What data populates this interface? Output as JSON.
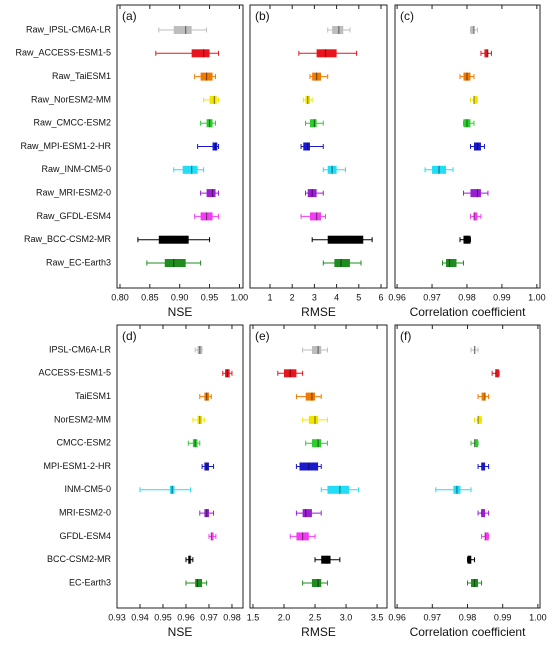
{
  "chart_data": [
    {
      "type": "box",
      "panel_label": "(a)",
      "xlabel": "NSE",
      "categories": [
        "Raw_IPSL-CM6A-LR",
        "Raw_ACCESS-ESM1-5",
        "Raw_TaiESM1",
        "Raw_NorESM2-MM",
        "Raw_CMCC-ESM2",
        "Raw_MPI-ESM1-2-HR",
        "Raw_INM-CM5-0",
        "Raw_MRI-ESM2-0",
        "Raw_GFDL-ESM4",
        "Raw_BCC-CSM2-MR",
        "Raw_EC-Earth3"
      ],
      "colors": [
        "#bdbdbd",
        "#e8141e",
        "#f07a00",
        "#f2e600",
        "#2ecc2e",
        "#1a1acc",
        "#22ddf5",
        "#9b1fd1",
        "#f23cf2",
        "#000000",
        "#1f8c1f"
      ],
      "min": [
        0.865,
        0.86,
        0.925,
        0.94,
        0.935,
        0.93,
        0.89,
        0.935,
        0.925,
        0.83,
        0.845
      ],
      "q1": [
        0.89,
        0.92,
        0.935,
        0.95,
        0.945,
        0.955,
        0.905,
        0.945,
        0.935,
        0.865,
        0.875
      ],
      "median": [
        0.91,
        0.94,
        0.945,
        0.958,
        0.95,
        0.96,
        0.92,
        0.955,
        0.945,
        0.885,
        0.89
      ],
      "q3": [
        0.92,
        0.95,
        0.955,
        0.962,
        0.955,
        0.963,
        0.93,
        0.96,
        0.955,
        0.915,
        0.91
      ],
      "max": [
        0.945,
        0.965,
        0.96,
        0.965,
        0.96,
        0.965,
        0.94,
        0.965,
        0.965,
        0.95,
        0.935
      ],
      "xlim": [
        0.795,
        1.006
      ],
      "xticks": [
        {
          "value": 0.8,
          "label": "0.80"
        },
        0.85,
        {
          "value": 0.9,
          "label": "0.90"
        },
        0.95,
        {
          "value": 1,
          "label": "1.00"
        }
      ]
    },
    {
      "type": "box",
      "panel_label": "(b)",
      "xlabel": "RMSE",
      "colors": [
        "#bdbdbd",
        "#e8141e",
        "#f07a00",
        "#f2e600",
        "#2ecc2e",
        "#1a1acc",
        "#22ddf5",
        "#9b1fd1",
        "#f23cf2",
        "#000000",
        "#1f8c1f"
      ],
      "min": [
        3.6,
        2.3,
        2.8,
        2.5,
        2.6,
        2.4,
        3.4,
        2.6,
        2.4,
        2.9,
        3.4
      ],
      "q1": [
        3.8,
        3.1,
        2.9,
        2.6,
        2.8,
        2.5,
        3.6,
        2.7,
        2.8,
        3.6,
        3.9
      ],
      "median": [
        4.1,
        3.5,
        3.1,
        2.7,
        3.0,
        2.7,
        3.8,
        2.9,
        3.1,
        4.6,
        4.2
      ],
      "q3": [
        4.3,
        4.0,
        3.3,
        2.8,
        3.1,
        2.8,
        4.0,
        3.1,
        3.3,
        5.2,
        4.6
      ],
      "max": [
        4.6,
        4.9,
        3.6,
        2.9,
        3.4,
        3.4,
        4.4,
        3.4,
        3.5,
        5.6,
        5.1
      ],
      "xlim": [
        0.1,
        6.27
      ],
      "xticks": [
        1,
        2,
        3,
        4,
        5,
        6
      ]
    },
    {
      "type": "box",
      "panel_label": "(c)",
      "xlabel": "Correlation coefficient",
      "colors": [
        "#bdbdbd",
        "#e8141e",
        "#f07a00",
        "#f2e600",
        "#2ecc2e",
        "#1a1acc",
        "#22ddf5",
        "#9b1fd1",
        "#f23cf2",
        "#000000",
        "#1f8c1f"
      ],
      "min": [
        0.981,
        0.984,
        0.978,
        0.981,
        0.979,
        0.981,
        0.968,
        0.979,
        0.981,
        0.978,
        0.973
      ],
      "q1": [
        0.981,
        0.985,
        0.979,
        0.982,
        0.979,
        0.982,
        0.97,
        0.981,
        0.982,
        0.979,
        0.974
      ],
      "median": [
        0.982,
        0.986,
        0.98,
        0.982,
        0.98,
        0.983,
        0.972,
        0.983,
        0.982,
        0.98,
        0.975
      ],
      "q3": [
        0.982,
        0.986,
        0.981,
        0.983,
        0.981,
        0.984,
        0.974,
        0.984,
        0.983,
        0.981,
        0.977
      ],
      "max": [
        0.983,
        0.987,
        0.982,
        0.983,
        0.982,
        0.985,
        0.976,
        0.986,
        0.984,
        0.981,
        0.979
      ],
      "xlim": [
        0.9594,
        1.0009
      ],
      "xticks": [
        0.96,
        0.97,
        0.98,
        0.99,
        {
          "value": 1,
          "label": "1.00"
        }
      ]
    },
    {
      "type": "box",
      "panel_label": "(d)",
      "xlabel": "NSE",
      "categories": [
        "IPSL-CM6A-LR",
        "ACCESS-ESM1-5",
        "TaiESM1",
        "NorESM2-MM",
        "CMCC-ESM2",
        "MPI-ESM1-2-HR",
        "INM-CM5-0",
        "MRI-ESM2-0",
        "GFDL-ESM4",
        "BCC-CSM2-MR",
        "EC-Earth3"
      ],
      "colors": [
        "#bdbdbd",
        "#e8141e",
        "#f07a00",
        "#f2e600",
        "#2ecc2e",
        "#1a1acc",
        "#22ddf5",
        "#9b1fd1",
        "#f23cf2",
        "#000000",
        "#1f8c1f"
      ],
      "min": [
        0.964,
        0.976,
        0.966,
        0.963,
        0.961,
        0.967,
        0.94,
        0.966,
        0.97,
        0.96,
        0.96
      ],
      "q1": [
        0.965,
        0.977,
        0.968,
        0.965,
        0.963,
        0.968,
        0.953,
        0.968,
        0.971,
        0.961,
        0.964
      ],
      "median": [
        0.966,
        0.978,
        0.969,
        0.966,
        0.964,
        0.969,
        0.954,
        0.969,
        0.971,
        0.962,
        0.965
      ],
      "q3": [
        0.967,
        0.979,
        0.97,
        0.967,
        0.965,
        0.97,
        0.955,
        0.97,
        0.972,
        0.962,
        0.967
      ],
      "max": [
        0.967,
        0.98,
        0.971,
        0.968,
        0.966,
        0.972,
        0.962,
        0.972,
        0.973,
        0.963,
        0.969
      ],
      "xlim": [
        0.93,
        0.9848
      ],
      "xticks": [
        0.93,
        0.94,
        0.95,
        0.96,
        0.97,
        0.98
      ]
    },
    {
      "type": "box",
      "panel_label": "(e)",
      "xlabel": "RMSE",
      "colors": [
        "#bdbdbd",
        "#e8141e",
        "#f07a00",
        "#f2e600",
        "#2ecc2e",
        "#1a1acc",
        "#22ddf5",
        "#9b1fd1",
        "#f23cf2",
        "#000000",
        "#1f8c1f"
      ],
      "min": [
        2.3,
        1.9,
        2.2,
        2.3,
        2.35,
        2.2,
        2.6,
        2.2,
        2.1,
        2.5,
        2.3
      ],
      "q1": [
        2.45,
        2.0,
        2.35,
        2.4,
        2.45,
        2.25,
        2.7,
        2.3,
        2.2,
        2.6,
        2.45
      ],
      "median": [
        2.55,
        2.1,
        2.45,
        2.5,
        2.55,
        2.4,
        2.9,
        2.35,
        2.3,
        2.7,
        2.55
      ],
      "q3": [
        2.6,
        2.2,
        2.5,
        2.55,
        2.6,
        2.55,
        3.05,
        2.45,
        2.4,
        2.75,
        2.6
      ],
      "max": [
        2.7,
        2.3,
        2.6,
        2.7,
        2.7,
        2.6,
        3.2,
        2.6,
        2.5,
        2.9,
        2.7
      ],
      "xlim": [
        1.452,
        3.66
      ],
      "xticks": [
        1.5,
        {
          "value": 2,
          "label": "2.0"
        },
        2.5,
        {
          "value": 3,
          "label": "3.0"
        },
        3.5
      ]
    },
    {
      "type": "box",
      "panel_label": "(f)",
      "xlabel": "Correlation coefficient",
      "colors": [
        "#bdbdbd",
        "#e8141e",
        "#f07a00",
        "#f2e600",
        "#2ecc2e",
        "#1a1acc",
        "#22ddf5",
        "#9b1fd1",
        "#f23cf2",
        "#000000",
        "#1f8c1f"
      ],
      "min": [
        0.981,
        0.987,
        0.983,
        0.982,
        0.981,
        0.983,
        0.971,
        0.983,
        0.984,
        0.98,
        0.98
      ],
      "q1": [
        0.982,
        0.988,
        0.984,
        0.983,
        0.982,
        0.984,
        0.976,
        0.984,
        0.985,
        0.98,
        0.981
      ],
      "median": [
        0.982,
        0.988,
        0.985,
        0.983,
        0.982,
        0.984,
        0.977,
        0.984,
        0.985,
        0.981,
        0.982
      ],
      "q3": [
        0.982,
        0.989,
        0.985,
        0.984,
        0.983,
        0.985,
        0.978,
        0.985,
        0.986,
        0.981,
        0.983
      ],
      "max": [
        0.983,
        0.989,
        0.986,
        0.984,
        0.983,
        0.986,
        0.981,
        0.986,
        0.986,
        0.982,
        0.984
      ],
      "xlim": [
        0.9594,
        1.0006
      ],
      "xticks": [
        0.96,
        0.97,
        0.98,
        0.99,
        {
          "value": 1,
          "label": "1.00"
        }
      ]
    }
  ]
}
